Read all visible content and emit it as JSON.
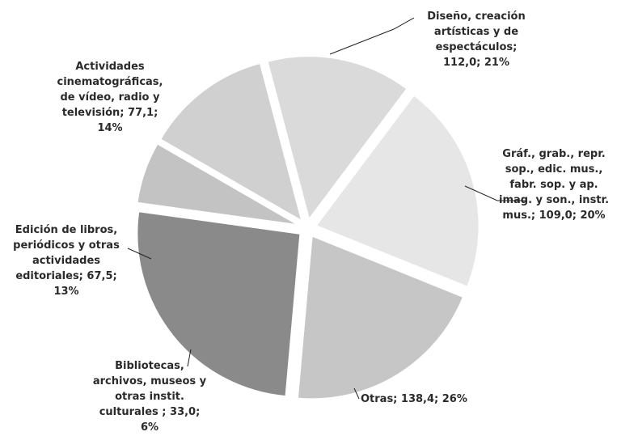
{
  "chart_data": {
    "type": "pie",
    "exploded": true,
    "start_angle_deg": 22,
    "slices": [
      {
        "label_lines": [
          "Gráf., grab., repr.",
          "sop., edic. mus.,",
          "fabr. sop. y ap.",
          "imag. y son., instr.",
          "mus.; 109,0; 20%"
        ],
        "value": 109.0,
        "percent": 20,
        "color": "#c6c6c6"
      },
      {
        "label_lines": [
          "Otras; 138,4; 26%"
        ],
        "value": 138.4,
        "percent": 26,
        "color": "#8a8a8a"
      },
      {
        "label_lines": [
          "Bibliotecas,",
          "archivos, museos y",
          "otras instit.",
          "culturales ; 33,0;",
          "6%"
        ],
        "value": 33.0,
        "percent": 6,
        "color": "#c3c3c3"
      },
      {
        "label_lines": [
          "Edición de libros,",
          "periódicos y otras",
          "actividades",
          "editoriales; 67,5;",
          "13%"
        ],
        "value": 67.5,
        "percent": 13,
        "color": "#d0d0d0"
      },
      {
        "label_lines": [
          "Actividades",
          "cinematográficas,",
          "de vídeo, radio y",
          "televisión; 77,1;",
          "14%"
        ],
        "value": 77.1,
        "percent": 14,
        "color": "#dadada"
      },
      {
        "label_lines": [
          "Diseño, creación",
          "artísticas y de",
          "espectáculos;",
          "112,0; 21%"
        ],
        "value": 112.0,
        "percent": 21,
        "color": "#e6e6e6"
      }
    ]
  }
}
